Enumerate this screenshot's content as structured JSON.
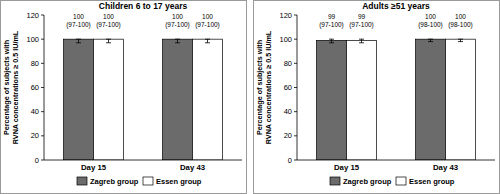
{
  "chart_data": [
    {
      "type": "bar",
      "title": "Children 6 to 17 years",
      "y_label": "Percentage of subjects with RVNA concentrations ≥ 0.5 IU/mL",
      "categories": [
        "Day 15",
        "Day 43"
      ],
      "series": [
        {
          "name": "Zagreb group",
          "color": "#6b6b6b",
          "values": [
            100,
            100
          ],
          "ci_low": [
            97,
            97
          ],
          "ci_high": [
            100,
            100
          ],
          "ci_labels": [
            "(97-100)",
            "(97-100)"
          ]
        },
        {
          "name": "Essen group",
          "color": "#ffffff",
          "values": [
            100,
            100
          ],
          "ci_low": [
            97,
            97
          ],
          "ci_high": [
            100,
            100
          ],
          "ci_labels": [
            "(97-100)",
            "(97-100)"
          ]
        }
      ],
      "ylim": [
        0,
        120
      ],
      "yticks": [
        0,
        20,
        40,
        60,
        80,
        100,
        120
      ],
      "data_labels": true,
      "legend": "bottom",
      "grid": false
    },
    {
      "type": "bar",
      "title": "Adults ≥51 years",
      "y_label": "Percentage of subjects with RVNA concentrations ≥ 0.5 IU/mL",
      "categories": [
        "Day 15",
        "Day 43"
      ],
      "series": [
        {
          "name": "Zagreb group",
          "color": "#6b6b6b",
          "values": [
            99,
            100
          ],
          "ci_low": [
            97,
            98
          ],
          "ci_high": [
            100,
            100
          ],
          "ci_labels": [
            "(97-100)",
            "(98-100)"
          ]
        },
        {
          "name": "Essen group",
          "color": "#ffffff",
          "values": [
            99,
            100
          ],
          "ci_low": [
            97,
            98
          ],
          "ci_high": [
            100,
            100
          ],
          "ci_labels": [
            "(97-100)",
            "(98-100)"
          ]
        }
      ],
      "ylim": [
        0,
        120
      ],
      "yticks": [
        0,
        20,
        40,
        60,
        80,
        100,
        120
      ],
      "data_labels": true,
      "legend": "bottom",
      "grid": false
    }
  ]
}
